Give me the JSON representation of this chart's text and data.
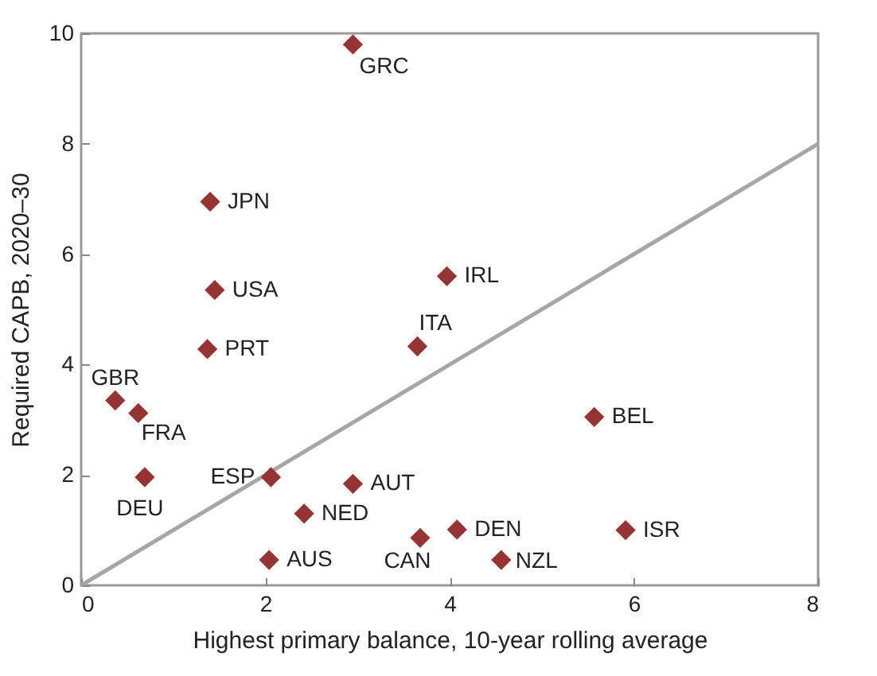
{
  "chart_data": {
    "type": "scatter",
    "xlabel": "Highest primary balance, 10-year rolling average",
    "ylabel": "Required CAPB, 2020–30",
    "xlim": [
      0,
      8
    ],
    "ylim": [
      0,
      10
    ],
    "xticks": [
      0,
      2,
      4,
      6,
      8
    ],
    "yticks": [
      0,
      2,
      4,
      6,
      8,
      10
    ],
    "grid": false,
    "series": [
      {
        "marker": "diamond",
        "color": "#963434",
        "x": [
          2.95,
          1.4,
          1.45,
          1.37,
          3.97,
          3.65,
          0.37,
          0.62,
          0.69,
          2.06,
          2.95,
          2.42,
          2.04,
          3.68,
          4.08,
          4.56,
          5.57,
          5.91
        ],
        "values": [
          9.8,
          6.95,
          5.35,
          4.28,
          5.6,
          4.33,
          3.35,
          3.12,
          1.96,
          1.96,
          1.84,
          1.3,
          0.46,
          0.86,
          1.01,
          0.46,
          3.05,
          1.0
        ]
      },
      {
        "type": "line",
        "color": "#a6a6a6",
        "x": [
          0,
          8
        ],
        "values": [
          0,
          8
        ]
      }
    ],
    "annotations": [
      {
        "text": "GRC",
        "x": 2.95,
        "y": 9.8
      },
      {
        "text": "JPN",
        "x": 1.4,
        "y": 6.95
      },
      {
        "text": "USA",
        "x": 1.45,
        "y": 5.35
      },
      {
        "text": "PRT",
        "x": 1.37,
        "y": 4.28
      },
      {
        "text": "IRL",
        "x": 3.97,
        "y": 5.6
      },
      {
        "text": "ITA",
        "x": 3.65,
        "y": 4.33
      },
      {
        "text": "GBR",
        "x": 0.37,
        "y": 3.35
      },
      {
        "text": "FRA",
        "x": 0.62,
        "y": 3.12
      },
      {
        "text": "DEU",
        "x": 0.69,
        "y": 1.96
      },
      {
        "text": "ESP",
        "x": 2.06,
        "y": 1.96
      },
      {
        "text": "AUT",
        "x": 2.95,
        "y": 1.84
      },
      {
        "text": "NED",
        "x": 2.42,
        "y": 1.3
      },
      {
        "text": "AUS",
        "x": 2.04,
        "y": 0.46
      },
      {
        "text": "CAN",
        "x": 3.68,
        "y": 0.86
      },
      {
        "text": "DEN",
        "x": 4.08,
        "y": 1.01
      },
      {
        "text": "NZL",
        "x": 4.56,
        "y": 0.46
      },
      {
        "text": "BEL",
        "x": 5.57,
        "y": 3.05
      },
      {
        "text": "ISR",
        "x": 5.91,
        "y": 1.0
      }
    ]
  }
}
